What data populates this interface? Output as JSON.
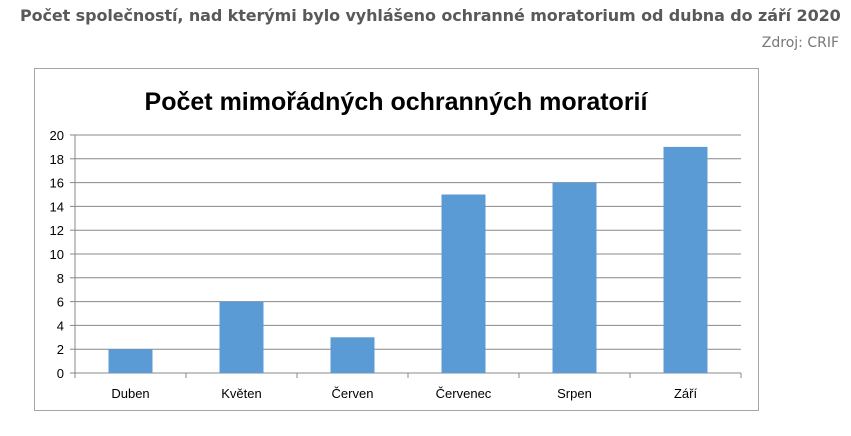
{
  "caption": {
    "title": "Počet společností, nad kterými bylo vyhlášeno ochranné moratorium od dubna do září 2020",
    "source": "Zdroj: CRIF"
  },
  "chart_data": {
    "type": "bar",
    "title": "Počet mimořádných ochranných moratorií",
    "categories": [
      "Duben",
      "Květen",
      "Červen",
      "Červenec",
      "Srpen",
      "Září"
    ],
    "values": [
      2,
      6,
      3,
      15,
      16,
      19
    ],
    "ylim": [
      0,
      20
    ],
    "yticks": [
      0,
      2,
      4,
      6,
      8,
      10,
      12,
      14,
      16,
      18,
      20
    ],
    "grid": true,
    "legend": "none",
    "bar_color": "#5b9bd5",
    "grid_color": "#888888"
  }
}
